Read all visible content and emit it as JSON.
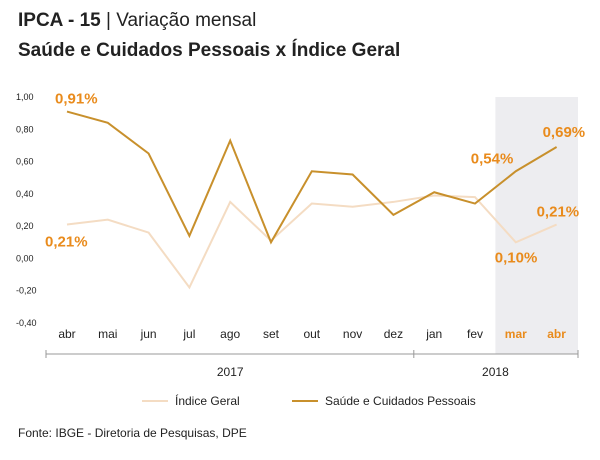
{
  "header": {
    "title_bold": "IPCA - 15",
    "title_sep": " | ",
    "title_rest": "Variação mensal",
    "subtitle": "Saúde e Cuidados Pessoais x Índice Geral"
  },
  "source": "Fonte: IBGE - Diretoria de Pesquisas, DPE",
  "colors": {
    "geral": "#f4dcc3",
    "saude": "#c8902c",
    "label": "#e98b1c",
    "highlight_band": "#ededf0",
    "axis": "#999999"
  },
  "chart_data": {
    "type": "line",
    "categories": [
      "abr",
      "mai",
      "jun",
      "jul",
      "ago",
      "set",
      "out",
      "nov",
      "dez",
      "jan",
      "fev",
      "mar",
      "abr"
    ],
    "highlight_categories": [
      11,
      12
    ],
    "years": [
      {
        "label": "2017",
        "from": 0,
        "to": 8
      },
      {
        "label": "2018",
        "from": 9,
        "to": 12
      }
    ],
    "ylim": [
      -0.4,
      1.0
    ],
    "yticks": [
      "1,00",
      "0,80",
      "0,60",
      "0,40",
      "0,20",
      "0,00",
      "-0,20",
      "-0,40"
    ],
    "ytick_values": [
      1.0,
      0.8,
      0.6,
      0.4,
      0.2,
      0.0,
      -0.2,
      -0.4
    ],
    "series": [
      {
        "name": "Índice Geral",
        "values": [
          0.21,
          0.24,
          0.16,
          -0.18,
          0.35,
          0.11,
          0.34,
          0.32,
          0.35,
          0.39,
          0.38,
          0.1,
          0.21
        ]
      },
      {
        "name": "Saúde e Cuidados Pessoais",
        "values": [
          0.91,
          0.84,
          0.65,
          0.14,
          0.73,
          0.1,
          0.54,
          0.52,
          0.27,
          0.41,
          0.34,
          0.54,
          0.69
        ]
      }
    ],
    "annotations": [
      {
        "text": "0,91%",
        "series": 1,
        "index": 0
      },
      {
        "text": "0,21%",
        "series": 0,
        "index": 0
      },
      {
        "text": "0,54%",
        "series": 1,
        "index": 11
      },
      {
        "text": "0,69%",
        "series": 1,
        "index": 12
      },
      {
        "text": "0,21%",
        "series": 0,
        "index": 12
      },
      {
        "text": "0,10%",
        "series": 0,
        "index": 11
      }
    ]
  }
}
